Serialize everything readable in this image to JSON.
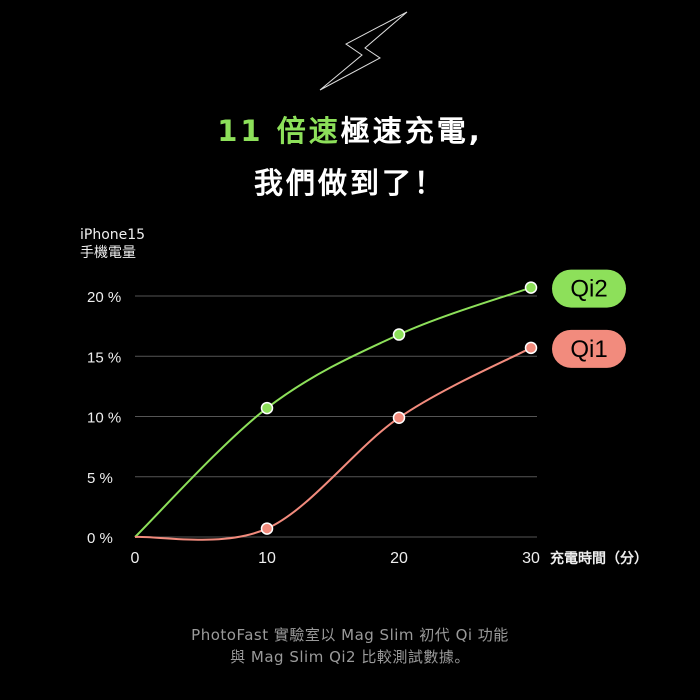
{
  "headline": {
    "line1_highlight": "11 倍速",
    "line1_rest": "極速充電,",
    "line2": "我們做到了！"
  },
  "icon": "lightning-bolt-outline-icon",
  "footnote": {
    "line1": "PhotoFast 實驗室以 Mag Slim 初代 Qi 功能",
    "line2": "與 Mag Slim Qi2 比較測試數據。"
  },
  "colors": {
    "qi2": "#8de05a",
    "qi1": "#f28b7d",
    "background": "#000000",
    "grid": "#555555"
  },
  "chart_data": {
    "type": "line",
    "title": "",
    "ylabel_line1": "iPhone15",
    "ylabel_line2": "手機電量",
    "xlabel": "充電時間（分）",
    "x": [
      0,
      10,
      20,
      30
    ],
    "xticks": [
      "0",
      "10",
      "20",
      "30"
    ],
    "yticks": [
      "0 %",
      "5 %",
      "10 %",
      "15 %",
      "20 %"
    ],
    "ytick_values": [
      0,
      5,
      10,
      15,
      20
    ],
    "xlim": [
      0,
      30
    ],
    "ylim": [
      0,
      20
    ],
    "grid": "horizontal",
    "legend": "right, labels at line ends",
    "series": [
      {
        "name": "Qi2",
        "values": [
          0,
          10.7,
          16.8,
          20.7
        ]
      },
      {
        "name": "Qi1",
        "values": [
          0,
          0.7,
          9.9,
          15.7
        ]
      }
    ]
  }
}
